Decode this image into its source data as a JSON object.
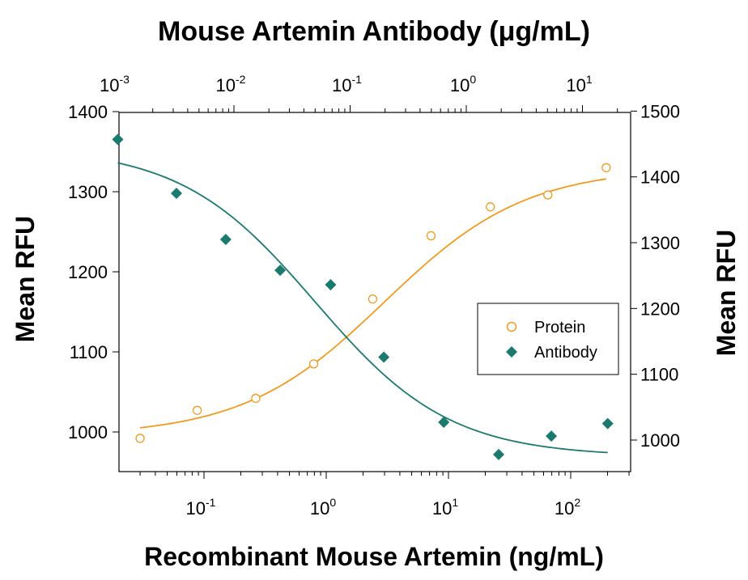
{
  "chart_data": {
    "type": "scatter",
    "title": "Mouse Artemin Antibody (μg/mL)",
    "xlabel": "Recombinant Mouse Artemin (ng/mL)",
    "ylabel_left": "Mean RFU",
    "ylabel_right": "Mean RFU",
    "x_scale": "log",
    "x_ticks": [
      {
        "base": "10",
        "exp": "-1",
        "value": 0.1
      },
      {
        "base": "10",
        "exp": "0",
        "value": 1
      },
      {
        "base": "10",
        "exp": "1",
        "value": 10
      },
      {
        "base": "10",
        "exp": "2",
        "value": 100
      }
    ],
    "top_scale": "log",
    "top_ticks": [
      {
        "base": "10",
        "exp": "-3",
        "value": 0.001
      },
      {
        "base": "10",
        "exp": "-2",
        "value": 0.01
      },
      {
        "base": "10",
        "exp": "-1",
        "value": 0.1
      },
      {
        "base": "10",
        "exp": "0",
        "value": 1
      },
      {
        "base": "10",
        "exp": "1",
        "value": 10
      }
    ],
    "ylim_left": [
      950,
      1400
    ],
    "yticks_left": [
      "1000",
      "1100",
      "1200",
      "1300",
      "1400"
    ],
    "ylim_right": [
      950,
      1500
    ],
    "yticks_right": [
      "1000",
      "1100",
      "1200",
      "1300",
      "1400",
      "1500"
    ],
    "grid": false,
    "legend_position": "right",
    "series": [
      {
        "name": "Protein",
        "axis_x": "bottom",
        "axis_y": "left",
        "marker": "open-circle",
        "color": "#F29A1E",
        "points": [
          {
            "x": 0.03,
            "y": 992
          },
          {
            "x": 0.088,
            "y": 1027
          },
          {
            "x": 0.265,
            "y": 1042
          },
          {
            "x": 0.79,
            "y": 1085
          },
          {
            "x": 2.4,
            "y": 1166
          },
          {
            "x": 7.2,
            "y": 1245
          },
          {
            "x": 22,
            "y": 1281
          },
          {
            "x": 65,
            "y": 1296
          },
          {
            "x": 195,
            "y": 1330
          }
        ],
        "fit": {
          "bottom": 995,
          "top": 1330,
          "ec50": 3.0,
          "hill": 0.75
        }
      },
      {
        "name": "Antibody",
        "axis_x": "top",
        "axis_y": "right",
        "marker": "filled-diamond",
        "color": "#1A7A6E",
        "points": [
          {
            "x": 0.001,
            "y": 1457
          },
          {
            "x": 0.0032,
            "y": 1375
          },
          {
            "x": 0.0085,
            "y": 1305
          },
          {
            "x": 0.025,
            "y": 1258
          },
          {
            "x": 0.068,
            "y": 1236
          },
          {
            "x": 0.195,
            "y": 1126
          },
          {
            "x": 0.64,
            "y": 1027
          },
          {
            "x": 1.9,
            "y": 978
          },
          {
            "x": 5.4,
            "y": 1006
          },
          {
            "x": 16.5,
            "y": 1025
          }
        ],
        "fit": {
          "bottom": 975,
          "top": 1445,
          "ec50": 0.05,
          "hill": 0.75
        }
      }
    ]
  }
}
